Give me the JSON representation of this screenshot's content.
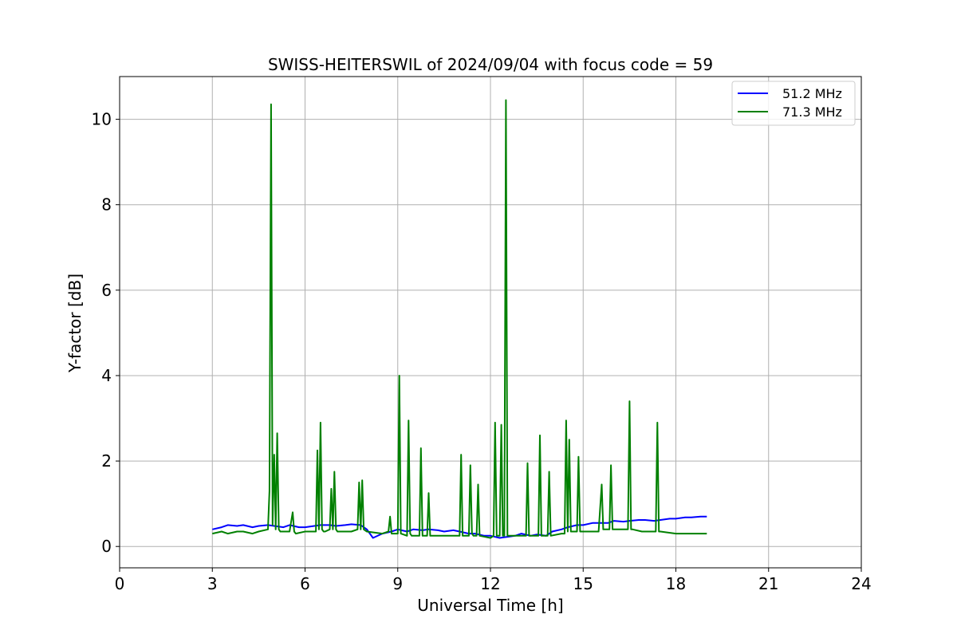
{
  "chart_data": {
    "type": "line",
    "title": "SWISS-HEITERSWIL of 2024/09/04 with focus code = 59",
    "xlabel": "Universal Time [h]",
    "ylabel": "Y-factor [dB]",
    "xlim": [
      0,
      24
    ],
    "ylim": [
      -0.5,
      11
    ],
    "xticks": [
      0,
      3,
      6,
      9,
      12,
      15,
      18,
      21,
      24
    ],
    "yticks": [
      0,
      2,
      4,
      6,
      8,
      10
    ],
    "grid": true,
    "legend_position": "top-right",
    "series": [
      {
        "name": "51.2 MHz",
        "color": "#0000ff",
        "x": [
          3.0,
          3.3,
          3.5,
          3.8,
          4.0,
          4.3,
          4.5,
          4.8,
          5.0,
          5.3,
          5.5,
          5.8,
          6.0,
          6.3,
          6.5,
          6.8,
          7.0,
          7.3,
          7.5,
          7.8,
          8.0,
          8.2,
          8.5,
          8.8,
          9.0,
          9.3,
          9.5,
          9.8,
          10.0,
          10.3,
          10.5,
          10.8,
          11.0,
          11.3,
          11.5,
          11.8,
          12.0,
          12.3,
          12.5,
          12.8,
          13.0,
          13.3,
          13.5,
          13.8,
          14.0,
          14.3,
          14.5,
          14.8,
          15.0,
          15.3,
          15.5,
          15.8,
          16.0,
          16.3,
          16.5,
          16.8,
          17.0,
          17.3,
          17.5,
          17.8,
          18.0,
          18.3,
          18.5,
          18.8,
          19.0
        ],
        "y": [
          0.4,
          0.45,
          0.5,
          0.48,
          0.5,
          0.45,
          0.48,
          0.5,
          0.48,
          0.45,
          0.5,
          0.45,
          0.45,
          0.48,
          0.5,
          0.5,
          0.48,
          0.5,
          0.52,
          0.5,
          0.4,
          0.2,
          0.3,
          0.35,
          0.4,
          0.35,
          0.4,
          0.38,
          0.4,
          0.38,
          0.35,
          0.38,
          0.35,
          0.3,
          0.3,
          0.25,
          0.25,
          0.2,
          0.22,
          0.25,
          0.3,
          0.25,
          0.28,
          0.25,
          0.35,
          0.4,
          0.45,
          0.5,
          0.5,
          0.55,
          0.55,
          0.55,
          0.6,
          0.58,
          0.6,
          0.62,
          0.62,
          0.6,
          0.62,
          0.65,
          0.65,
          0.68,
          0.68,
          0.7,
          0.7
        ]
      },
      {
        "name": "71.3 MHz",
        "color": "#008000",
        "x": [
          3.0,
          3.3,
          3.5,
          3.8,
          4.0,
          4.3,
          4.5,
          4.8,
          4.85,
          4.9,
          4.95,
          5.0,
          5.05,
          5.1,
          5.15,
          5.2,
          5.25,
          5.3,
          5.5,
          5.6,
          5.65,
          5.7,
          6.0,
          6.35,
          6.4,
          6.45,
          6.5,
          6.55,
          6.6,
          6.65,
          6.8,
          6.85,
          6.9,
          6.95,
          7.0,
          7.05,
          7.5,
          7.7,
          7.75,
          7.8,
          7.85,
          7.9,
          8.0,
          8.5,
          8.7,
          8.75,
          8.8,
          9.0,
          9.05,
          9.1,
          9.3,
          9.35,
          9.4,
          9.45,
          9.7,
          9.75,
          9.8,
          9.85,
          9.95,
          10.0,
          10.05,
          10.5,
          11.0,
          11.05,
          11.1,
          11.15,
          11.3,
          11.35,
          11.4,
          11.45,
          11.55,
          11.6,
          11.65,
          12.0,
          12.1,
          12.15,
          12.2,
          12.3,
          12.35,
          12.4,
          12.45,
          12.5,
          12.55,
          12.6,
          13.0,
          13.15,
          13.2,
          13.25,
          13.55,
          13.6,
          13.65,
          13.85,
          13.9,
          13.95,
          14.3,
          14.4,
          14.45,
          14.5,
          14.55,
          14.6,
          14.65,
          14.8,
          14.85,
          14.9,
          15.0,
          15.5,
          15.6,
          15.65,
          15.7,
          15.85,
          15.9,
          15.95,
          16.3,
          16.45,
          16.5,
          16.55,
          16.6,
          16.9,
          17.35,
          17.4,
          17.45,
          17.5,
          18.0,
          18.5,
          19.0
        ],
        "y": [
          0.3,
          0.35,
          0.3,
          0.35,
          0.35,
          0.3,
          0.35,
          0.4,
          1.3,
          10.35,
          0.5,
          2.15,
          0.4,
          2.65,
          0.4,
          0.35,
          0.35,
          0.35,
          0.35,
          0.8,
          0.35,
          0.3,
          0.35,
          0.35,
          2.25,
          0.4,
          2.9,
          0.4,
          0.35,
          0.35,
          0.4,
          1.35,
          0.4,
          1.75,
          0.4,
          0.35,
          0.35,
          0.4,
          1.5,
          0.4,
          1.55,
          0.4,
          0.35,
          0.3,
          0.35,
          0.7,
          0.3,
          0.3,
          4.0,
          0.3,
          0.25,
          2.95,
          0.3,
          0.25,
          0.25,
          2.3,
          0.25,
          0.25,
          0.25,
          1.25,
          0.25,
          0.25,
          0.25,
          2.15,
          0.25,
          0.25,
          0.25,
          1.9,
          0.3,
          0.25,
          0.25,
          1.45,
          0.25,
          0.2,
          0.25,
          2.9,
          0.25,
          0.25,
          2.85,
          0.25,
          0.25,
          10.45,
          0.25,
          0.25,
          0.25,
          0.25,
          1.95,
          0.25,
          0.25,
          2.6,
          0.25,
          0.25,
          1.75,
          0.25,
          0.3,
          0.3,
          2.95,
          0.35,
          2.5,
          0.35,
          0.35,
          0.35,
          2.1,
          0.35,
          0.35,
          0.35,
          1.45,
          0.4,
          0.4,
          0.4,
          1.9,
          0.4,
          0.4,
          0.4,
          3.4,
          0.4,
          0.4,
          0.35,
          0.35,
          2.9,
          0.35,
          0.35,
          0.3,
          0.3,
          0.3
        ]
      }
    ]
  }
}
